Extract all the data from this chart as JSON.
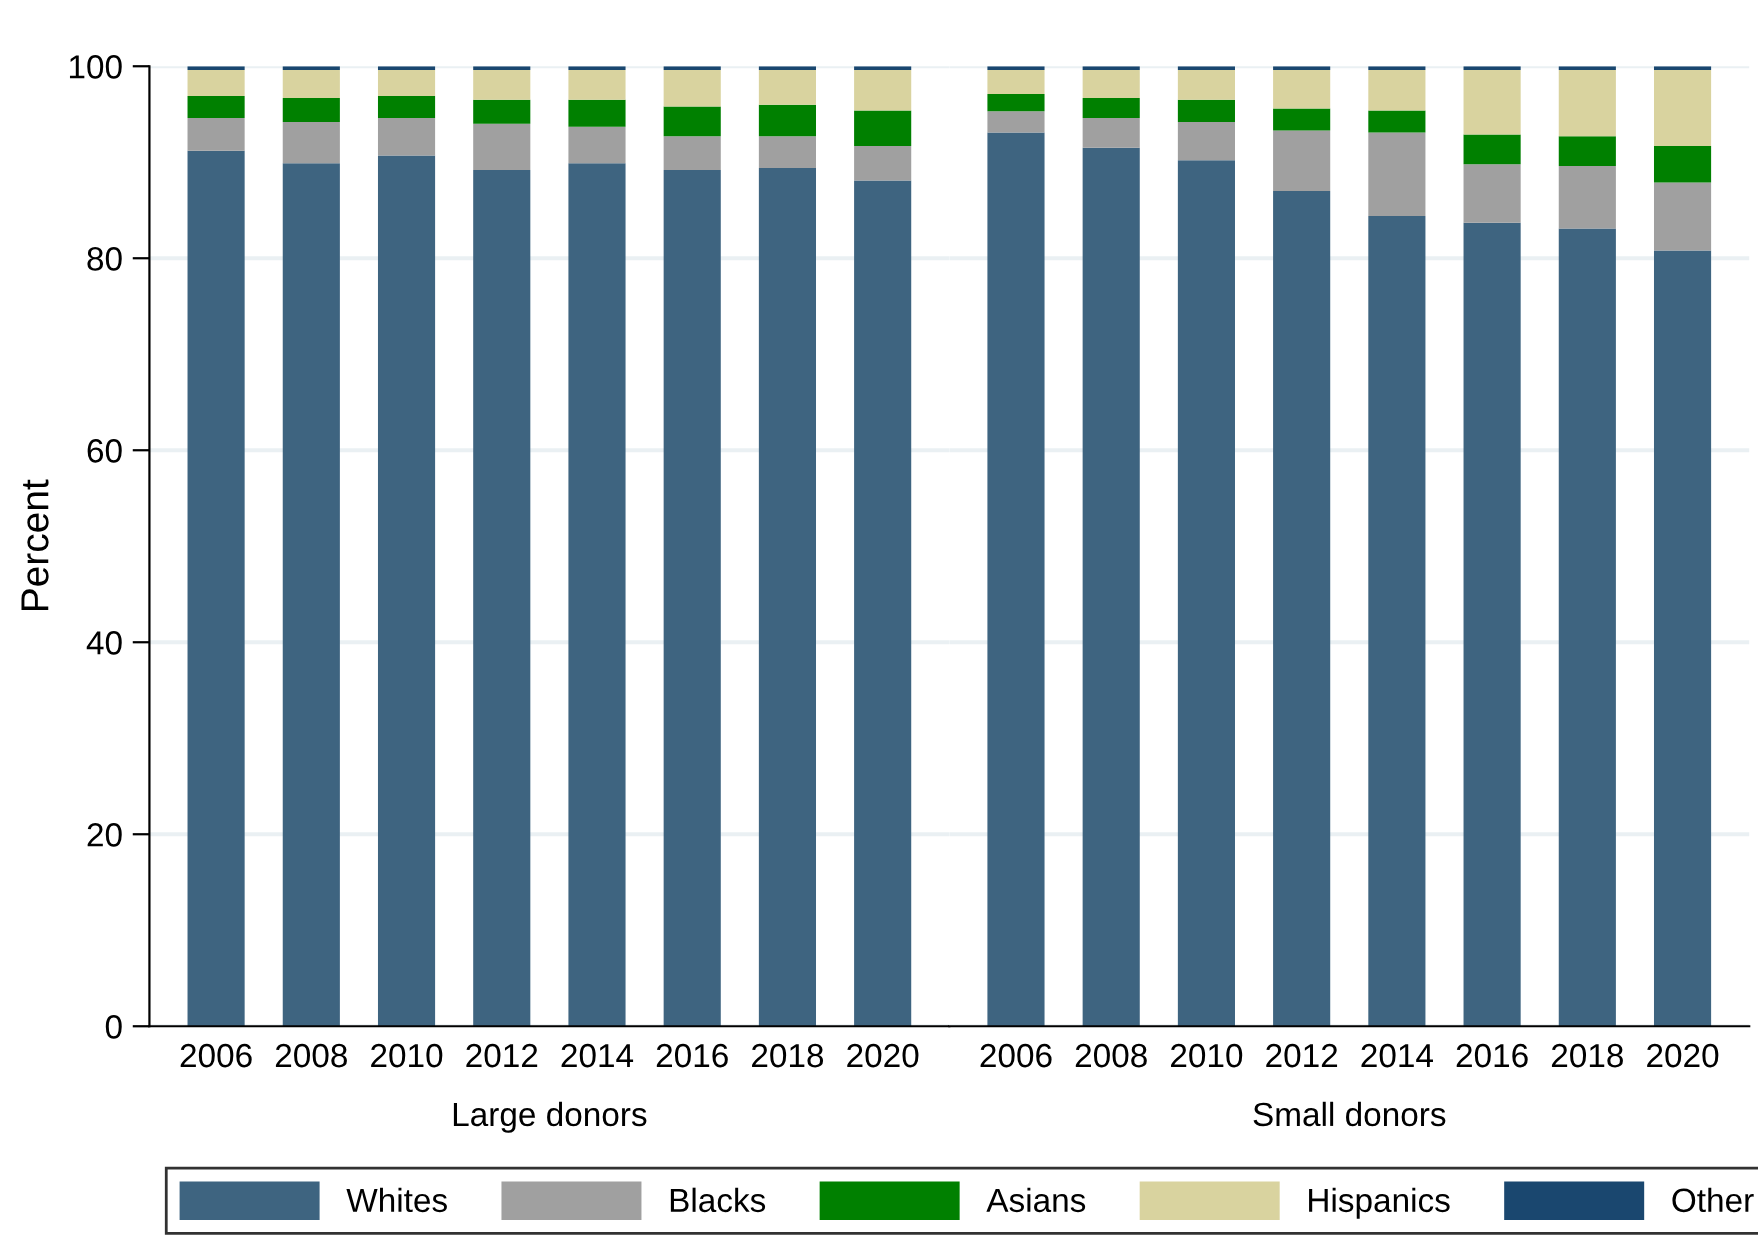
{
  "chart_data": [
    {
      "type": "bar",
      "stacked": true,
      "ylabel": "Percent",
      "xlabel": "Large donors",
      "categories": [
        "2006",
        "2008",
        "2010",
        "2012",
        "2014",
        "2016",
        "2018",
        "2020"
      ],
      "ylim": [
        0,
        100
      ],
      "yticks": [
        0,
        20,
        40,
        60,
        80,
        100
      ],
      "grid": "y",
      "legend": "bottom",
      "series": [
        {
          "name": "Whites",
          "color": "#3e6480",
          "values": [
            91.2,
            89.9,
            90.7,
            89.2,
            89.9,
            89.2,
            89.4,
            88.1
          ]
        },
        {
          "name": "Blacks",
          "color": "#a0a0a0",
          "values": [
            3.4,
            4.3,
            3.9,
            4.8,
            3.8,
            3.5,
            3.3,
            3.6
          ]
        },
        {
          "name": "Asians",
          "color": "#008000",
          "values": [
            2.3,
            2.5,
            2.3,
            2.5,
            2.8,
            3.1,
            3.3,
            3.7
          ]
        },
        {
          "name": "Hispanics",
          "color": "#d9d39f",
          "values": [
            2.7,
            2.9,
            2.7,
            3.1,
            3.1,
            3.8,
            3.6,
            4.2
          ]
        },
        {
          "name": "Other",
          "color": "#1a476f",
          "values": [
            0.4,
            0.4,
            0.4,
            0.4,
            0.4,
            0.4,
            0.4,
            0.4
          ]
        }
      ]
    },
    {
      "type": "bar",
      "stacked": true,
      "xlabel": "Small donors",
      "categories": [
        "2006",
        "2008",
        "2010",
        "2012",
        "2014",
        "2016",
        "2018",
        "2020"
      ],
      "ylim": [
        0,
        100
      ],
      "tick_labels": "x",
      "grid": "y",
      "series": [
        {
          "color": "#3e6480",
          "values": [
            93.1,
            91.5,
            90.2,
            87.0,
            84.4,
            83.7,
            83.1,
            80.8
          ]
        },
        {
          "color": "#a0a0a0",
          "values": [
            2.2,
            3.1,
            4.0,
            6.3,
            8.7,
            6.1,
            6.5,
            7.1
          ]
        },
        {
          "color": "#008000",
          "values": [
            1.8,
            2.1,
            2.3,
            2.3,
            2.3,
            3.1,
            3.1,
            3.8
          ]
        },
        {
          "color": "#d9d39f",
          "values": [
            2.5,
            2.9,
            3.1,
            4.0,
            4.2,
            6.7,
            6.9,
            7.9
          ]
        },
        {
          "color": "#1a476f",
          "values": [
            0.4,
            0.4,
            0.4,
            0.4,
            0.4,
            0.4,
            0.4,
            0.4
          ]
        }
      ]
    }
  ]
}
